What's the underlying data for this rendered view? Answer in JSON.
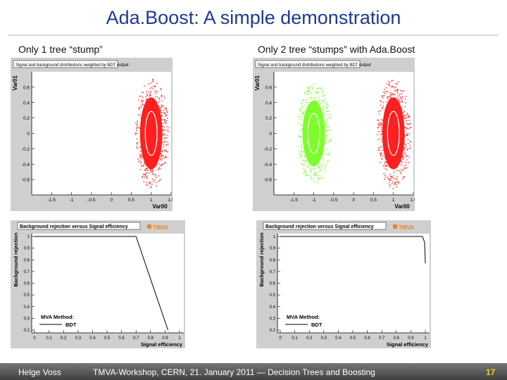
{
  "slide": {
    "title": "Ada.Boost: A simple demonstration",
    "left_subtitle": "Only 1 tree “stump”",
    "right_subtitle": "Only 2 tree “stumps” with Ada.Boost"
  },
  "scatter_header": "Signal and background distributions weighted by BDT output",
  "roc_header": "Background rejection versus Signal efficiency",
  "tmva_logo": "TMVA",
  "legend": {
    "method": "MVA Method:",
    "entry": "BDT"
  },
  "footer": {
    "author": "Helge Voss",
    "event": "TMVA-Workshop, CERN,  21. January 2011  ― Decision Trees and Boosting",
    "page": "17"
  },
  "colors": {
    "title": "#1f3a93",
    "signal": "#ff1f1f",
    "background": "#7cff2a",
    "page_number": "#f2d21a"
  },
  "chart_data": [
    {
      "type": "scatter",
      "title": "Signal and background distributions weighted by BDT output",
      "xlabel": "Var00",
      "ylabel": "Var01",
      "xlim": [
        -2,
        1.5
      ],
      "ylim": [
        -0.8,
        0.8
      ],
      "xticks": [
        "-1.5",
        "-1",
        "-0.5",
        "0",
        "0.5",
        "1",
        "1.5"
      ],
      "yticks": [
        "0.6",
        "0.4",
        "0.2",
        "0",
        "-0.2",
        "-0.4",
        "-0.6"
      ],
      "clusters": [
        {
          "center": [
            1.0,
            0.0
          ],
          "rx": 0.33,
          "ry": 0.55,
          "color": "#ff1f1f"
        }
      ]
    },
    {
      "type": "scatter",
      "title": "Signal and background distributions weighted by BDT output",
      "xlabel": "Var00",
      "ylabel": "Var01",
      "xlim": [
        -2,
        1.5
      ],
      "ylim": [
        -0.8,
        0.8
      ],
      "xticks": [
        "-1.5",
        "-1",
        "-0.5",
        "0",
        "0.5",
        "1",
        "1.5"
      ],
      "yticks": [
        "0.6",
        "0.4",
        "0.2",
        "0",
        "-0.2",
        "-0.4",
        "-0.6"
      ],
      "clusters": [
        {
          "center": [
            -1.0,
            0.0
          ],
          "rx": 0.33,
          "ry": 0.5,
          "color": "#7cff2a"
        },
        {
          "center": [
            1.0,
            0.0
          ],
          "rx": 0.33,
          "ry": 0.55,
          "color": "#ff1f1f"
        }
      ]
    },
    {
      "type": "line",
      "title": "Background rejection versus Signal efficiency",
      "xlabel": "Signal efficiency",
      "ylabel": "Background rejection",
      "xlim": [
        0,
        1
      ],
      "ylim": [
        0.2,
        1
      ],
      "xticks": [
        "0",
        "0.1",
        "0.2",
        "0.3",
        "0.4",
        "0.5",
        "0.6",
        "0.7",
        "0.8",
        "0.9",
        "1"
      ],
      "yticks": [
        "1",
        "0.9",
        "0.8",
        "0.7",
        "0.6",
        "0.5",
        "0.4",
        "0.3",
        "0.2"
      ],
      "series": [
        {
          "name": "BDT",
          "x": [
            0,
            0.7,
            0.92
          ],
          "y": [
            1,
            1,
            0.2
          ]
        }
      ]
    },
    {
      "type": "line",
      "title": "Background rejection versus Signal efficiency",
      "xlabel": "Signal efficiency",
      "ylabel": "Background rejection",
      "xlim": [
        0,
        1
      ],
      "ylim": [
        0.2,
        1
      ],
      "xticks": [
        "0",
        "0.1",
        "0.2",
        "0.3",
        "0.4",
        "0.5",
        "0.6",
        "0.7",
        "0.8",
        "0.9",
        "1"
      ],
      "yticks": [
        "1",
        "0.9",
        "0.8",
        "0.7",
        "0.6",
        "0.5",
        "0.4",
        "0.3",
        "0.2"
      ],
      "series": [
        {
          "name": "BDT",
          "x": [
            0,
            0.98,
            0.995,
            1.0
          ],
          "y": [
            1,
            1,
            0.95,
            0.77
          ]
        }
      ]
    }
  ]
}
